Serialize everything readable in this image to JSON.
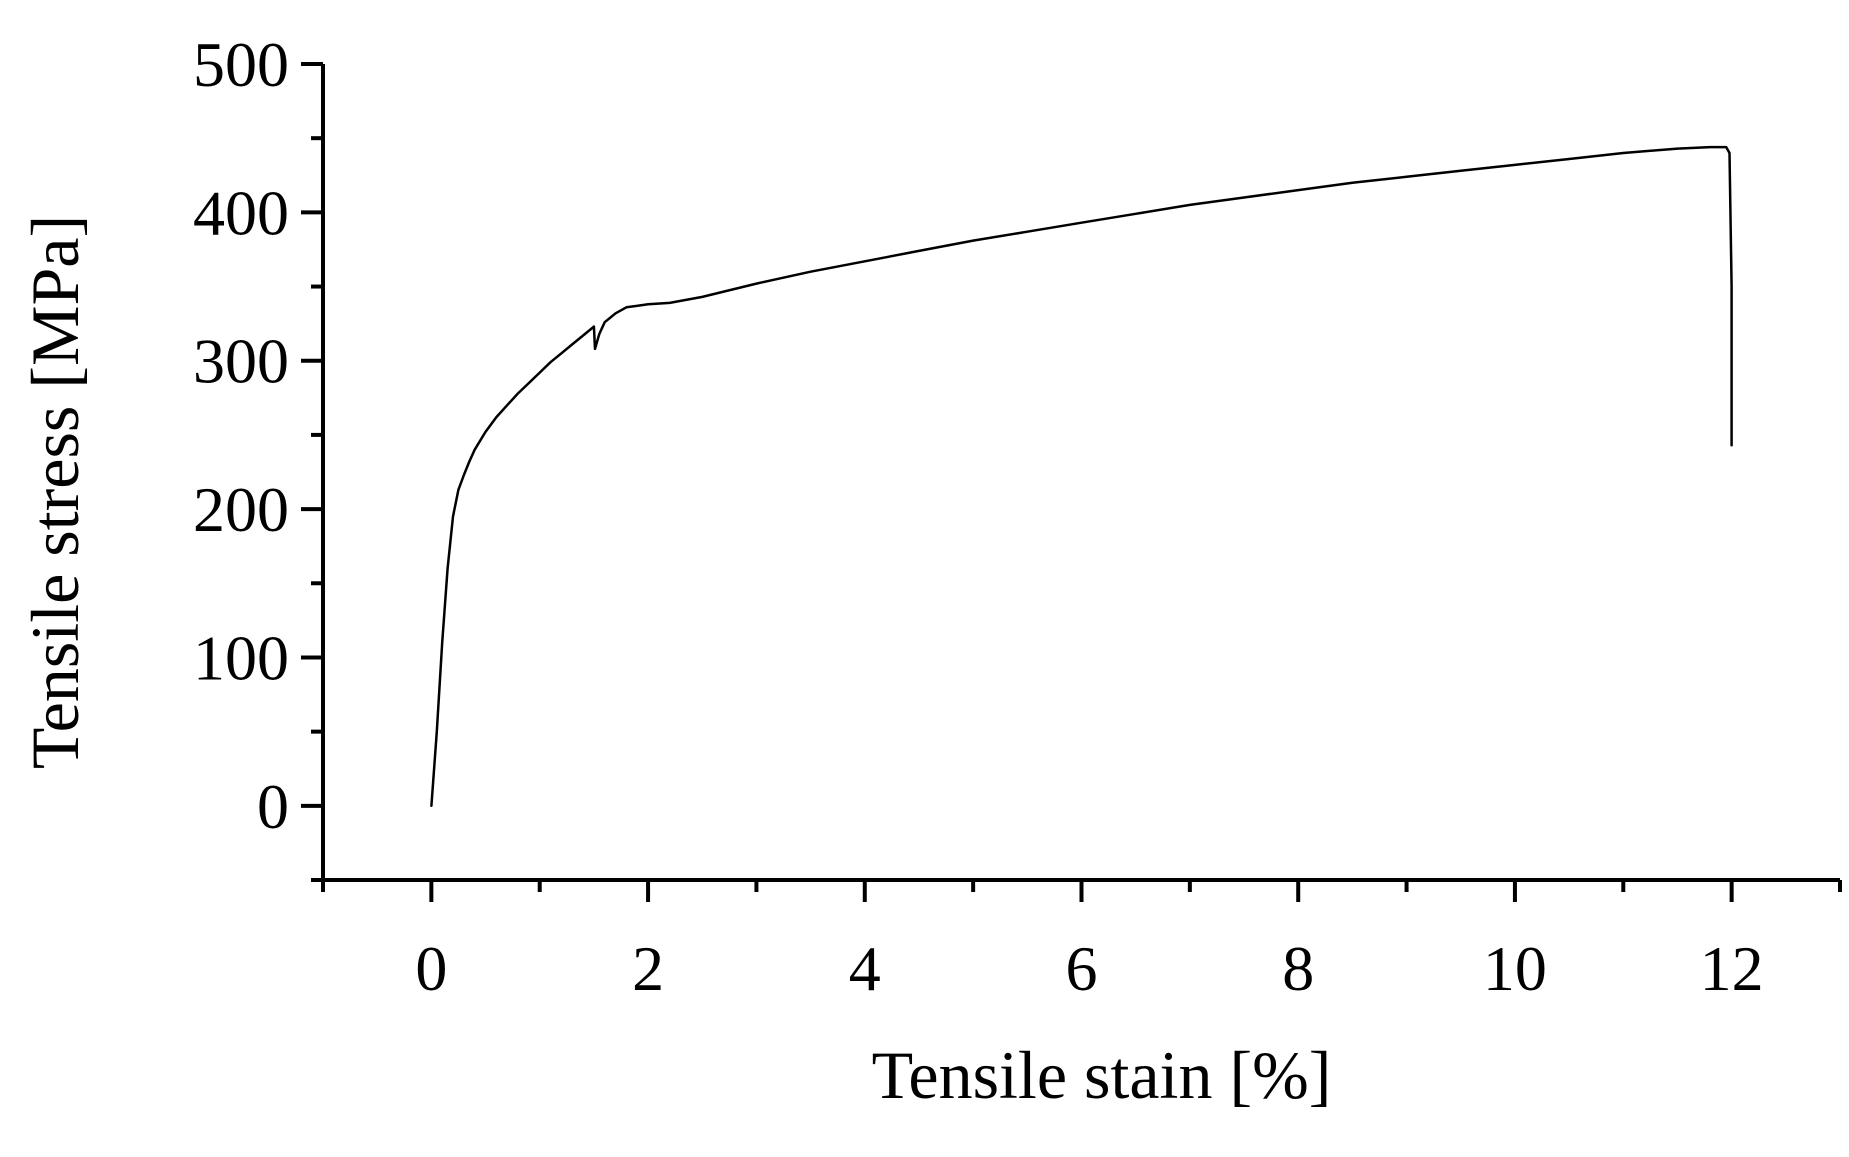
{
  "chart_data": {
    "type": "line",
    "xlabel": "Tensile stain [%]",
    "ylabel": "Tensile stress [MPa]",
    "xlim": [
      -1,
      13
    ],
    "ylim": [
      -50,
      500
    ],
    "x_ticks": [
      0,
      2,
      4,
      6,
      8,
      10,
      12
    ],
    "x_minor_ticks": [
      -1,
      1,
      3,
      5,
      7,
      9,
      11,
      13
    ],
    "y_ticks": [
      0,
      100,
      200,
      300,
      400,
      500
    ],
    "y_minor_ticks": [
      -50,
      50,
      150,
      250,
      350,
      450
    ],
    "grid": false,
    "colors": {
      "line": "#000000",
      "axes": "#000000",
      "background": "#ffffff"
    },
    "series": [
      {
        "x": [
          0,
          0.05,
          0.1,
          0.15,
          0.2,
          0.25,
          0.3,
          0.35,
          0.4,
          0.5,
          0.6,
          0.7,
          0.8,
          0.9,
          1.0,
          1.1,
          1.2,
          1.3,
          1.4,
          1.5,
          1.51,
          1.55,
          1.6,
          1.7,
          1.8,
          2.0,
          2.2,
          2.5,
          3.0,
          3.5,
          4.0,
          4.5,
          5.0,
          5.5,
          6.0,
          6.5,
          7.0,
          7.5,
          8.0,
          8.5,
          9.0,
          9.5,
          10.0,
          10.5,
          11.0,
          11.5,
          11.8,
          11.95,
          11.98,
          12.0,
          12.0
        ],
        "y": [
          0,
          50,
          110,
          160,
          195,
          213,
          223,
          232,
          240,
          252,
          262,
          270,
          278,
          285,
          292,
          299,
          305,
          311,
          317,
          323,
          308,
          318,
          326,
          332,
          336,
          338,
          339,
          343,
          352,
          360,
          367,
          374,
          381,
          387,
          393,
          399,
          405,
          410,
          415,
          420,
          424,
          428,
          432,
          436,
          440,
          443,
          444,
          444,
          440,
          350,
          243
        ]
      }
    ]
  }
}
